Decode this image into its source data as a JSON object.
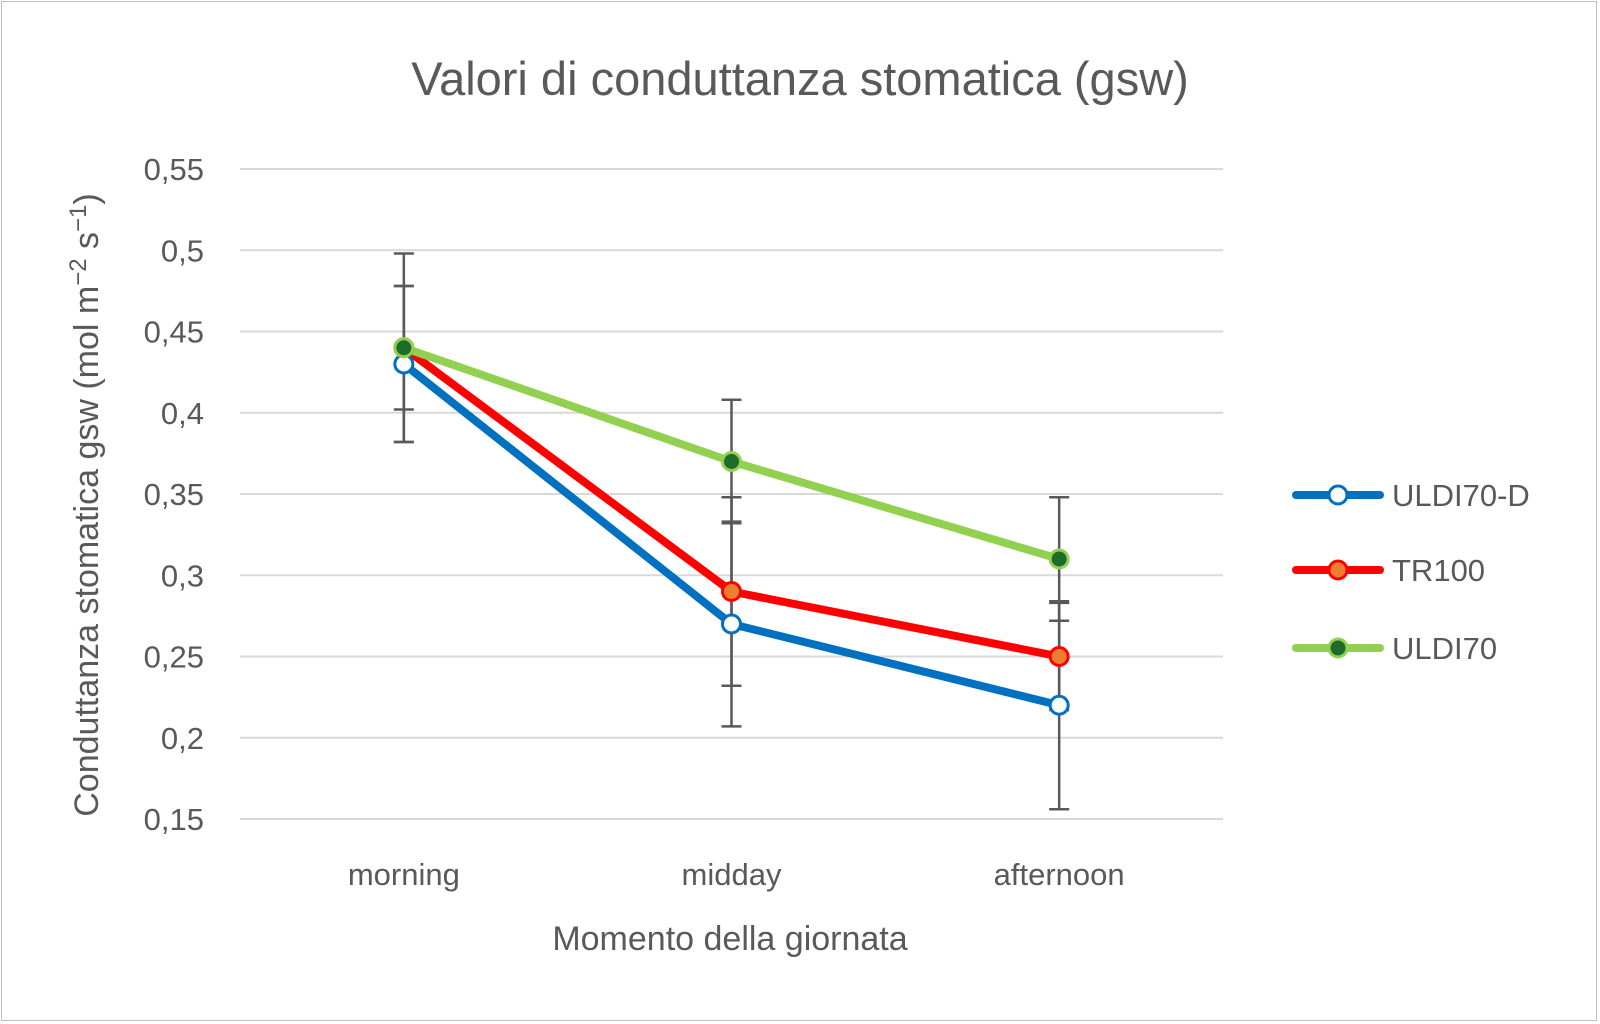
{
  "chart_data": {
    "type": "line",
    "title": "Valori di conduttanza stomatica (gsw)",
    "xlabel": "Momento della giornata",
    "ylabel": "Conduttanza stomatica gsw (mol m",
    "ylabel_sup1": "−2",
    "ylabel_mid": " s",
    "ylabel_sup2": "−1",
    "ylabel_end": ")",
    "categories": [
      "morning",
      "midday",
      "afternoon"
    ],
    "ylim": [
      0.15,
      0.55
    ],
    "yticks": [
      "0,15",
      "0,2",
      "0,25",
      "0,3",
      "0,35",
      "0,4",
      "0,45",
      "0,5",
      "0,55"
    ],
    "ytick_values": [
      0.15,
      0.2,
      0.25,
      0.3,
      0.35,
      0.4,
      0.45,
      0.5,
      0.55
    ],
    "grid": true,
    "legend_position": "right",
    "series": [
      {
        "name": "ULDI70-D",
        "values": [
          0.43,
          0.27,
          0.22
        ],
        "errors": [
          0.048,
          0.063,
          0.064
        ],
        "line_color": "#0070c0",
        "marker_fill": "#ffffff",
        "marker_stroke": "#0070c0"
      },
      {
        "name": "TR100",
        "values": [
          0.44,
          0.29,
          0.25
        ],
        "errors": [
          0.058,
          0.058,
          0.033
        ],
        "line_color": "#ff0000",
        "marker_fill": "#ed7d31",
        "marker_stroke": "#ff0000"
      },
      {
        "name": "ULDI70",
        "values": [
          0.44,
          0.37,
          0.31
        ],
        "errors": [
          0.038,
          0.038,
          0.038
        ],
        "line_color": "#92d050",
        "marker_fill": "#1e6b2a",
        "marker_stroke": "#92d050"
      }
    ]
  }
}
